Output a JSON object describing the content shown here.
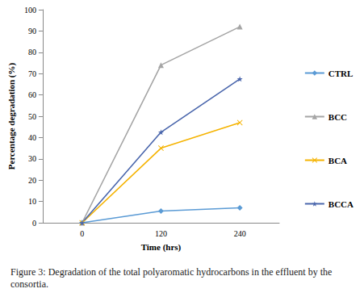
{
  "chart_data": {
    "type": "line",
    "title": "Figure 3: Degradation of the total polyaromatic hydrocarbons in the effluent by the consortia.",
    "x_label": "Time (hrs)",
    "y_label": "Percentage degradation (%)",
    "categories": [
      "0",
      "120",
      "240"
    ],
    "series": [
      {
        "name": "CTRL",
        "color": "#5b9bd5",
        "marker": "diamond",
        "values": [
          0,
          5.5,
          7
        ]
      },
      {
        "name": "BCC",
        "color": "#a5a5a5",
        "marker": "triangle",
        "values": [
          0,
          74,
          92
        ]
      },
      {
        "name": "BCA",
        "color": "#f5b300",
        "marker": "x",
        "values": [
          0,
          35,
          47
        ]
      },
      {
        "name": "BCCA",
        "color": "#4a66ac",
        "marker": "star",
        "values": [
          0,
          42.5,
          67.5
        ]
      }
    ],
    "ylim": [
      0,
      100
    ],
    "yticks": [
      0,
      10,
      20,
      30,
      40,
      50,
      60,
      70,
      80,
      90,
      100
    ],
    "grid": false,
    "legend": "right"
  }
}
